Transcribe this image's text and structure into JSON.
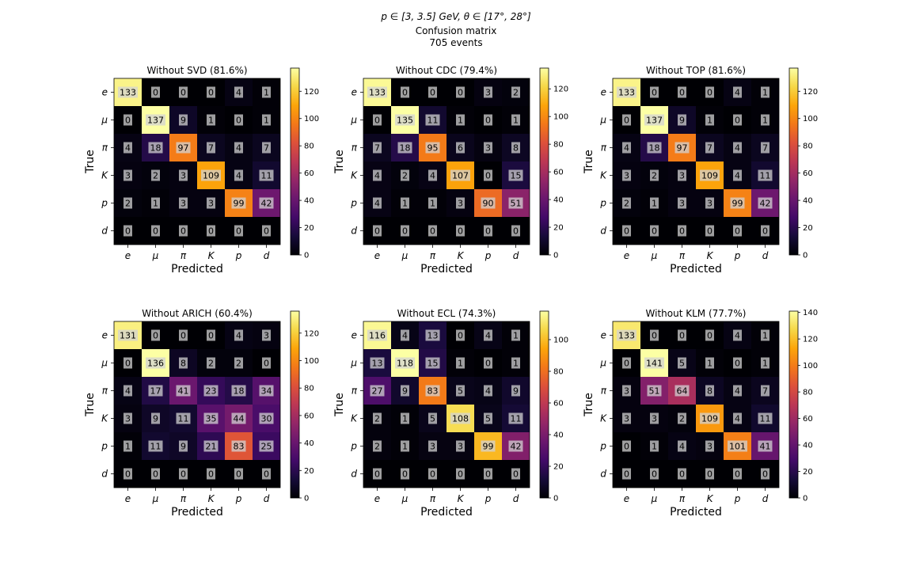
{
  "suptitle": {
    "line1": "p ∈ [3, 3.5] GeV, θ ∈ [17°, 28°]",
    "line2": "Confusion matrix",
    "line3": "705 events"
  },
  "colormap": "inferno",
  "chart_data": [
    {
      "type": "heatmap",
      "title": "Without SVD (81.6%)",
      "xlabel": "Predicted",
      "ylabel": "True",
      "categories_x": [
        "e",
        "μ",
        "π",
        "K",
        "p",
        "d"
      ],
      "categories_y": [
        "e",
        "μ",
        "π",
        "K",
        "p",
        "d"
      ],
      "values": [
        [
          133,
          0,
          0,
          0,
          4,
          1
        ],
        [
          0,
          137,
          9,
          1,
          0,
          1
        ],
        [
          4,
          18,
          97,
          7,
          4,
          7
        ],
        [
          3,
          2,
          3,
          109,
          4,
          11
        ],
        [
          2,
          1,
          3,
          3,
          99,
          42
        ],
        [
          0,
          0,
          0,
          0,
          0,
          0
        ]
      ],
      "colorbar": {
        "min": 0,
        "max": 137,
        "ticks": [
          0,
          20,
          40,
          60,
          80,
          100,
          120
        ]
      }
    },
    {
      "type": "heatmap",
      "title": "Without CDC (79.4%)",
      "xlabel": "Predicted",
      "ylabel": "True",
      "categories_x": [
        "e",
        "μ",
        "π",
        "K",
        "p",
        "d"
      ],
      "categories_y": [
        "e",
        "μ",
        "π",
        "K",
        "p",
        "d"
      ],
      "values": [
        [
          133,
          0,
          0,
          0,
          3,
          2
        ],
        [
          0,
          135,
          11,
          1,
          0,
          1
        ],
        [
          7,
          18,
          95,
          6,
          3,
          8
        ],
        [
          4,
          2,
          4,
          107,
          0,
          15
        ],
        [
          4,
          1,
          1,
          3,
          90,
          51
        ],
        [
          0,
          0,
          0,
          0,
          0,
          0
        ]
      ],
      "colorbar": {
        "min": 0,
        "max": 135,
        "ticks": [
          0,
          20,
          40,
          60,
          80,
          100,
          120
        ]
      }
    },
    {
      "type": "heatmap",
      "title": "Without TOP (81.6%)",
      "xlabel": "Predicted",
      "ylabel": "True",
      "categories_x": [
        "e",
        "μ",
        "π",
        "K",
        "p",
        "d"
      ],
      "categories_y": [
        "e",
        "μ",
        "π",
        "K",
        "p",
        "d"
      ],
      "values": [
        [
          133,
          0,
          0,
          0,
          4,
          1
        ],
        [
          0,
          137,
          9,
          1,
          0,
          1
        ],
        [
          4,
          18,
          97,
          7,
          4,
          7
        ],
        [
          3,
          2,
          3,
          109,
          4,
          11
        ],
        [
          2,
          1,
          3,
          3,
          99,
          42
        ],
        [
          0,
          0,
          0,
          0,
          0,
          0
        ]
      ],
      "colorbar": {
        "min": 0,
        "max": 137,
        "ticks": [
          0,
          20,
          40,
          60,
          80,
          100,
          120
        ]
      }
    },
    {
      "type": "heatmap",
      "title": "Without ARICH (60.4%)",
      "xlabel": "Predicted",
      "ylabel": "True",
      "categories_x": [
        "e",
        "μ",
        "π",
        "K",
        "p",
        "d"
      ],
      "categories_y": [
        "e",
        "μ",
        "π",
        "K",
        "p",
        "d"
      ],
      "values": [
        [
          131,
          0,
          0,
          0,
          4,
          3
        ],
        [
          0,
          136,
          8,
          2,
          2,
          0
        ],
        [
          4,
          17,
          41,
          23,
          18,
          34
        ],
        [
          3,
          9,
          11,
          35,
          44,
          30
        ],
        [
          1,
          11,
          9,
          21,
          83,
          25
        ],
        [
          0,
          0,
          0,
          0,
          0,
          0
        ]
      ],
      "colorbar": {
        "min": 0,
        "max": 136,
        "ticks": [
          0,
          20,
          40,
          60,
          80,
          100,
          120
        ]
      }
    },
    {
      "type": "heatmap",
      "title": "Without ECL (74.3%)",
      "xlabel": "Predicted",
      "ylabel": "True",
      "categories_x": [
        "e",
        "μ",
        "π",
        "K",
        "p",
        "d"
      ],
      "categories_y": [
        "e",
        "μ",
        "π",
        "K",
        "p",
        "d"
      ],
      "values": [
        [
          116,
          4,
          13,
          0,
          4,
          1
        ],
        [
          13,
          118,
          15,
          1,
          0,
          1
        ],
        [
          27,
          9,
          83,
          5,
          4,
          9
        ],
        [
          2,
          1,
          5,
          108,
          5,
          11
        ],
        [
          2,
          1,
          3,
          3,
          99,
          42
        ],
        [
          0,
          0,
          0,
          0,
          0,
          0
        ]
      ],
      "colorbar": {
        "min": 0,
        "max": 118,
        "ticks": [
          0,
          20,
          40,
          60,
          80,
          100
        ]
      }
    },
    {
      "type": "heatmap",
      "title": "Without KLM (77.7%)",
      "xlabel": "Predicted",
      "ylabel": "True",
      "categories_x": [
        "e",
        "μ",
        "π",
        "K",
        "p",
        "d"
      ],
      "categories_y": [
        "e",
        "μ",
        "π",
        "K",
        "p",
        "d"
      ],
      "values": [
        [
          133,
          0,
          0,
          0,
          4,
          1
        ],
        [
          0,
          141,
          5,
          1,
          0,
          1
        ],
        [
          3,
          51,
          64,
          8,
          4,
          7
        ],
        [
          3,
          3,
          2,
          109,
          4,
          11
        ],
        [
          0,
          1,
          4,
          3,
          101,
          41
        ],
        [
          0,
          0,
          0,
          0,
          0,
          0
        ]
      ],
      "colorbar": {
        "min": 0,
        "max": 141,
        "ticks": [
          0,
          20,
          40,
          60,
          80,
          100,
          120,
          140
        ]
      }
    }
  ]
}
